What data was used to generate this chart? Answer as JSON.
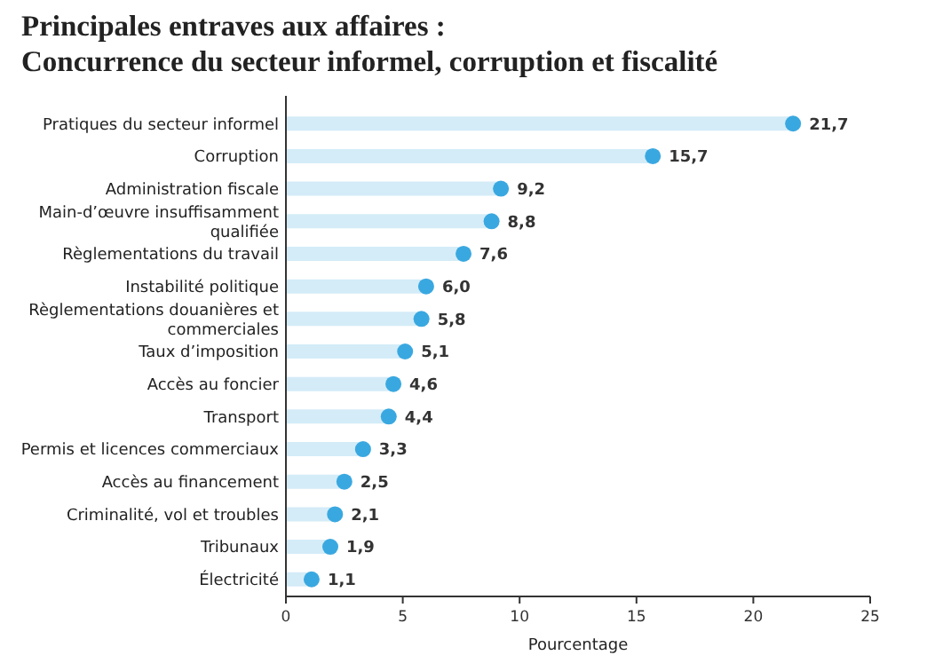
{
  "chart_data": {
    "type": "lollipop",
    "orientation": "horizontal",
    "title": "Principales entraves aux affaires :",
    "subtitle": "Concurrence du secteur informel, corruption et fiscalité",
    "xlabel": "Pourcentage",
    "categories": [
      "Pratiques du secteur informel",
      "Corruption",
      "Administration fiscale",
      "Main-d’œuvre insuffisamment qualifiée",
      "Règlementations du travail",
      "Instabilité politique",
      "Règlementations douanières et commerciales",
      "Taux d’imposition",
      "Accès au foncier",
      "Transport",
      "Permis et licences commerciaux",
      "Accès au financement",
      "Criminalité, vol et troubles",
      "Tribunaux",
      "Électricité"
    ],
    "values": [
      21.7,
      15.7,
      9.2,
      8.8,
      7.6,
      6.0,
      5.8,
      5.1,
      4.6,
      4.4,
      3.3,
      2.5,
      2.1,
      1.9,
      1.1
    ],
    "value_labels": [
      "21,7",
      "15,7",
      "9,2",
      "8,8",
      "7,6",
      "6,0",
      "5,8",
      "5,1",
      "4,6",
      "4,4",
      "3,3",
      "2,5",
      "2,1",
      "1,9",
      "1,1"
    ],
    "color": "#3aa8e0",
    "xlim": [
      0,
      25
    ],
    "xticks": [
      0,
      5,
      10,
      15,
      20,
      25
    ]
  }
}
